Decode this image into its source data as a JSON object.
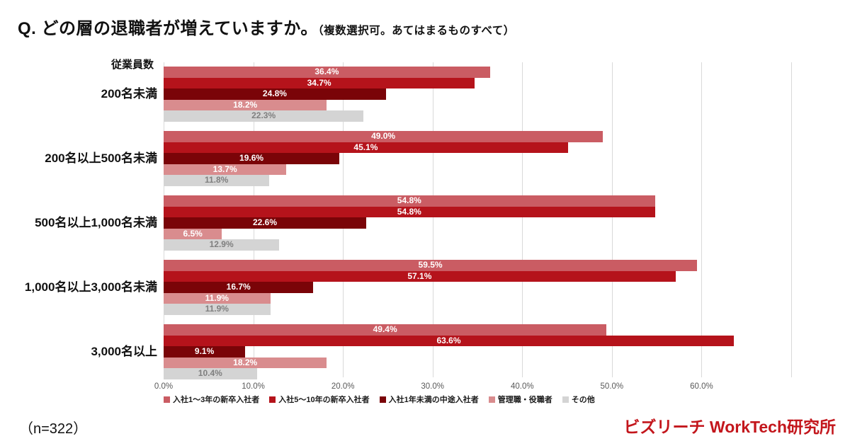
{
  "title": {
    "main": "Q. どの層の退職者が増えていますか。",
    "note": "（複数選択可。あてはまるものすべて）"
  },
  "chart_data": {
    "type": "bar",
    "orientation": "horizontal",
    "title": "Q. どの層の退職者が増えていますか。（複数選択可。あてはまるものすべて）",
    "axis_header": "従業員数",
    "categories": [
      "200名未満",
      "200名以上500名未満",
      "500名以上1,000名未満",
      "1,000名以上3,000名未満",
      "3,000名以上"
    ],
    "series": [
      {
        "name": "入社1〜3年の新卒入社者",
        "color": "#CA5C63",
        "label_color": "#ffffff",
        "values": [
          36.4,
          49.0,
          54.8,
          59.5,
          49.4
        ]
      },
      {
        "name": "入社5〜10年の新卒入社者",
        "color": "#B5131B",
        "label_color": "#ffffff",
        "values": [
          34.7,
          45.1,
          54.8,
          57.1,
          63.6
        ]
      },
      {
        "name": "入社1年未満の中途入社者",
        "color": "#7A0408",
        "label_color": "#ffffff",
        "values": [
          24.8,
          19.6,
          22.6,
          16.7,
          9.1
        ]
      },
      {
        "name": "管理職・役職者",
        "color": "#D98C8E",
        "label_color": "#ffffff",
        "values": [
          18.2,
          13.7,
          6.5,
          11.9,
          18.2
        ]
      },
      {
        "name": "その他",
        "color": "#D4D4D4",
        "label_color": "#7F7F7F",
        "values": [
          22.3,
          11.8,
          12.9,
          11.9,
          10.4
        ]
      }
    ],
    "x_tick_labels": [
      "0.0%",
      "10.0%",
      "20.0%",
      "30.0%",
      "40.0%",
      "50.0%",
      "60.0%"
    ],
    "x_tick_step": 10,
    "xlim": [
      0,
      70
    ],
    "value_suffix": "%",
    "grid": true,
    "gridline_color": "#d9d9d9",
    "legend_position": "bottom"
  },
  "footer": {
    "sample": "（n=322）",
    "brand": "ビズリーチ WorkTech研究所",
    "brand_color": "#C3161C"
  }
}
